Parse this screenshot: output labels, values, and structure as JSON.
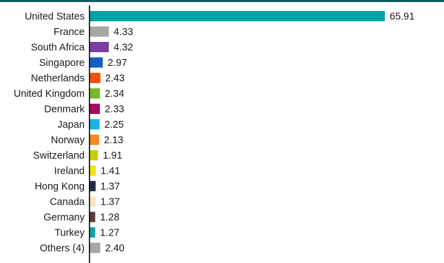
{
  "chart_data": {
    "type": "bar",
    "orientation": "horizontal",
    "categories": [
      "United States",
      "France",
      "South Africa",
      "Singapore",
      "Netherlands",
      "United Kingdom",
      "Denmark",
      "Japan",
      "Norway",
      "Switzerland",
      "Ireland",
      "Hong Kong",
      "Canada",
      "Germany",
      "Turkey",
      "Others (4)"
    ],
    "values": [
      65.91,
      4.33,
      4.32,
      2.97,
      2.43,
      2.34,
      2.33,
      2.25,
      2.13,
      1.91,
      1.41,
      1.37,
      1.37,
      1.28,
      1.27,
      2.4
    ],
    "value_labels": [
      "65.91",
      "4.33",
      "4.32",
      "2.97",
      "2.43",
      "2.34",
      "2.33",
      "2.25",
      "2.13",
      "1.91",
      "1.41",
      "1.37",
      "1.37",
      "1.28",
      "1.27",
      "2.40"
    ],
    "colors": [
      "#00a3a8",
      "#a6a6a8",
      "#7b3ea5",
      "#145ec4",
      "#f35208",
      "#76b82a",
      "#a3115e",
      "#1ab4e0",
      "#f68a1e",
      "#c2cf09",
      "#f5e214",
      "#222a44",
      "#f4e6bd",
      "#5a3b3b",
      "#0ea3a8",
      "#a6a6a8"
    ],
    "title": "",
    "xlabel": "",
    "ylabel": "",
    "xlim": [
      0,
      65.91
    ],
    "grid": false,
    "legend": "none"
  }
}
